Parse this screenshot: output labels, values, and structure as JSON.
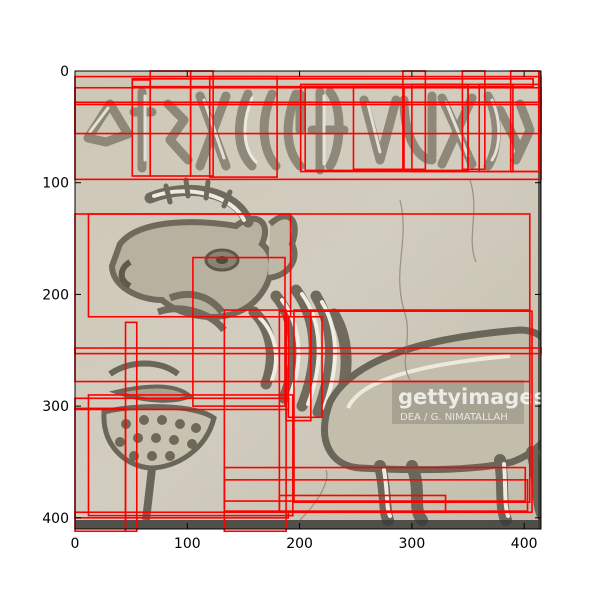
{
  "chart_data": {
    "type": "image-with-bounding-boxes",
    "xlim": [
      0,
      415
    ],
    "ylim": [
      410,
      0
    ],
    "xticks": [
      0,
      100,
      200,
      300,
      400
    ],
    "yticks": [
      0,
      100,
      200,
      300,
      400
    ],
    "box_color": "#ff0000",
    "boxes": [
      [
        0,
        15,
        415,
        15
      ],
      [
        0,
        28,
        415,
        28
      ],
      [
        51,
        7,
        357,
        7
      ],
      [
        51,
        8,
        16,
        86
      ],
      [
        67,
        0,
        36,
        94
      ],
      [
        103,
        0,
        20,
        94
      ],
      [
        120,
        5,
        60,
        90
      ],
      [
        201,
        12,
        212,
        78
      ],
      [
        205,
        14,
        145,
        75
      ],
      [
        248,
        14,
        45,
        74
      ],
      [
        292,
        0,
        20,
        88
      ],
      [
        300,
        12,
        50,
        78
      ],
      [
        345,
        0,
        20,
        88
      ],
      [
        360,
        12,
        30,
        78
      ],
      [
        388,
        0,
        25,
        90
      ],
      [
        0,
        5,
        415,
        92
      ],
      [
        12,
        128,
        180,
        92
      ],
      [
        0,
        128,
        405,
        150
      ],
      [
        0,
        248,
        415,
        5
      ],
      [
        105,
        167,
        82,
        133
      ],
      [
        133,
        214,
        55,
        198
      ],
      [
        188,
        215,
        22,
        98
      ],
      [
        190,
        220,
        30,
        90
      ],
      [
        182,
        215,
        225,
        180
      ],
      [
        195,
        214,
        210,
        172
      ],
      [
        0,
        293,
        190,
        10
      ],
      [
        12,
        290,
        182,
        108
      ],
      [
        45,
        225,
        10,
        187
      ],
      [
        0,
        302,
        45,
        110
      ],
      [
        0,
        395,
        190,
        5
      ],
      [
        133,
        355,
        268,
        30
      ],
      [
        133,
        366,
        270,
        28
      ],
      [
        182,
        380,
        148,
        15
      ]
    ]
  },
  "watermark": {
    "brand": "gettyimages",
    "credit": "DEA / G. NIMATALLAH"
  },
  "colors": {
    "stone": "#c6c1b0",
    "box": "#ff0000"
  }
}
